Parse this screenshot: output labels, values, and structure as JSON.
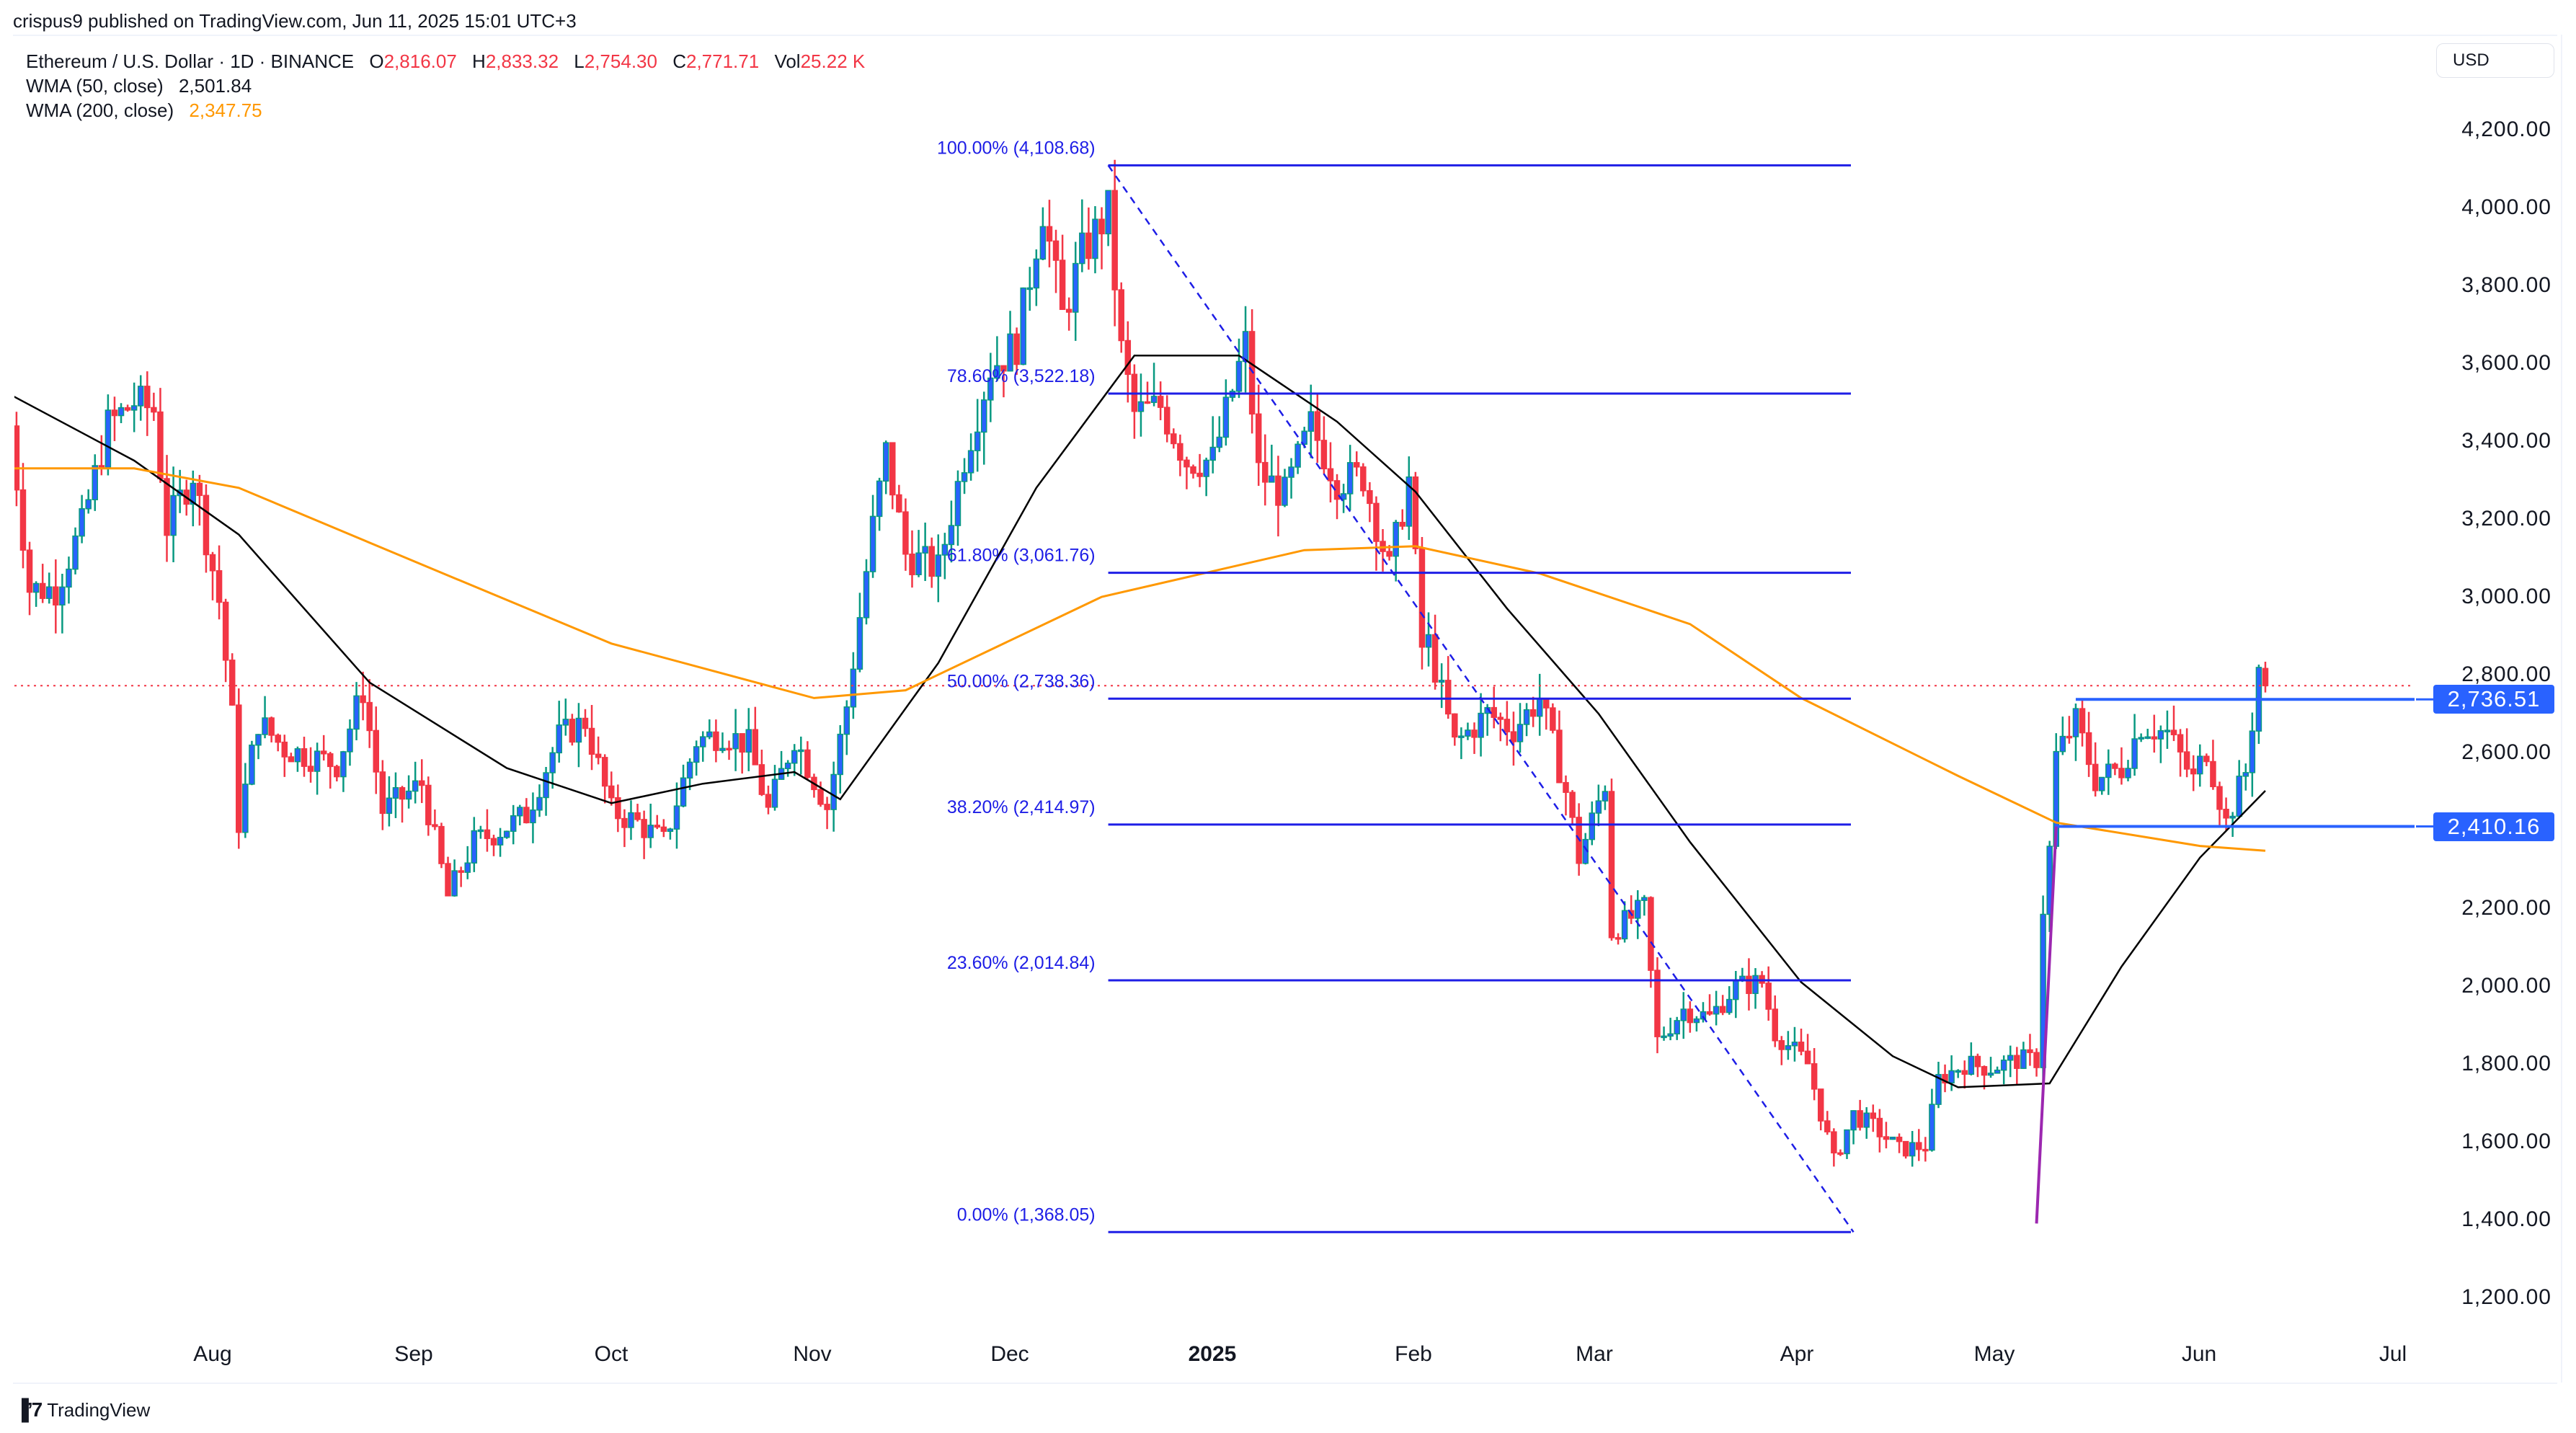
{
  "header": {
    "published": "crispus9 published on TradingView.com, Jun 11, 2025 15:01 UTC+3"
  },
  "legend": {
    "symbol": "Ethereum / U.S. Dollar · 1D · BINANCE",
    "open_label": "O",
    "open": "2,816.07",
    "high_label": "H",
    "high": "2,833.32",
    "low_label": "L",
    "low": "2,754.30",
    "close_label": "C",
    "close": "2,771.71",
    "vol_label": "Vol",
    "vol": "25.22 K",
    "wma50_label": "WMA (50, close)",
    "wma50_value": "2,501.84",
    "wma200_label": "WMA (200, close)",
    "wma200_value": "2,347.75"
  },
  "currency_button": "USD",
  "price_axis": {
    "ticks": [
      "4,200.00",
      "4,000.00",
      "3,800.00",
      "3,600.00",
      "3,400.00",
      "3,200.00",
      "3,000.00",
      "2,800.00",
      "2,600.00",
      "2,200.00",
      "2,000.00",
      "1,800.00",
      "1,600.00",
      "1,400.00",
      "1,200.00"
    ],
    "badges": [
      {
        "label": "2,736.51",
        "value": 2736.51
      },
      {
        "label": "2,410.16",
        "value": 2410.16
      }
    ]
  },
  "time_axis": {
    "labels": [
      "Aug",
      "Sep",
      "Oct",
      "Nov",
      "Dec",
      "2025",
      "Feb",
      "Mar",
      "Apr",
      "May",
      "Jun",
      "Jul"
    ]
  },
  "brand": {
    "name": "TradingView"
  },
  "colors": {
    "up_body": "#2962ff",
    "up_wick": "#089981",
    "down": "#f23645",
    "wma50": "#000000",
    "wma200": "#ff9800",
    "fib": "#1e1ee6",
    "hline": "#2962ff",
    "trend": "#9c27b0",
    "last_price": "#f23645"
  },
  "chart_data": {
    "type": "candlestick",
    "title": "Ethereum / U.S. Dollar · 1D · BINANCE",
    "xlabel": "",
    "ylabel": "USD",
    "ylim": [
      1150,
      4300
    ],
    "x_range": [
      "2024-07-01",
      "2025-07-15"
    ],
    "last_candle": {
      "date": "2025-06-11",
      "open": 2816.07,
      "high": 2833.32,
      "low": 2754.3,
      "close": 2771.71,
      "volume": "25.22K"
    },
    "close_anchors": [
      [
        "2024-07-01",
        3440
      ],
      [
        "2024-07-04",
        3020
      ],
      [
        "2024-07-08",
        3020
      ],
      [
        "2024-07-12",
        3180
      ],
      [
        "2024-07-16",
        3440
      ],
      [
        "2024-07-20",
        3500
      ],
      [
        "2024-07-23",
        3480
      ],
      [
        "2024-07-25",
        3180
      ],
      [
        "2024-07-29",
        3320
      ],
      [
        "2024-08-02",
        2990
      ],
      [
        "2024-08-04",
        2690
      ],
      [
        "2024-08-05",
        2420
      ],
      [
        "2024-08-08",
        2680
      ],
      [
        "2024-08-12",
        2610
      ],
      [
        "2024-08-16",
        2590
      ],
      [
        "2024-08-20",
        2570
      ],
      [
        "2024-08-24",
        2760
      ],
      [
        "2024-08-27",
        2450
      ],
      [
        "2024-09-02",
        2520
      ],
      [
        "2024-09-06",
        2230
      ],
      [
        "2024-09-10",
        2370
      ],
      [
        "2024-09-14",
        2400
      ],
      [
        "2024-09-18",
        2440
      ],
      [
        "2024-09-23",
        2640
      ],
      [
        "2024-09-27",
        2680
      ],
      [
        "2024-10-01",
        2450
      ],
      [
        "2024-10-05",
        2420
      ],
      [
        "2024-10-09",
        2370
      ],
      [
        "2024-10-14",
        2630
      ],
      [
        "2024-10-18",
        2650
      ],
      [
        "2024-10-22",
        2620
      ],
      [
        "2024-10-25",
        2450
      ],
      [
        "2024-10-29",
        2640
      ],
      [
        "2024-11-03",
        2460
      ],
      [
        "2024-11-06",
        2720
      ],
      [
        "2024-11-10",
        3180
      ],
      [
        "2024-11-12",
        3370
      ],
      [
        "2024-11-15",
        3110
      ],
      [
        "2024-11-20",
        3070
      ],
      [
        "2024-11-24",
        3360
      ],
      [
        "2024-11-28",
        3590
      ],
      [
        "2024-12-02",
        3650
      ],
      [
        "2024-12-06",
        4000
      ],
      [
        "2024-12-09",
        3720
      ],
      [
        "2024-12-12",
        3880
      ],
      [
        "2024-12-16",
        3990
      ],
      [
        "2024-12-18",
        3630
      ],
      [
        "2024-12-20",
        3470
      ],
      [
        "2024-12-24",
        3490
      ],
      [
        "2024-12-28",
        3350
      ],
      [
        "2025-01-01",
        3350
      ],
      [
        "2025-01-06",
        3650
      ],
      [
        "2025-01-08",
        3320
      ],
      [
        "2025-01-12",
        3260
      ],
      [
        "2025-01-16",
        3440
      ],
      [
        "2025-01-20",
        3300
      ],
      [
        "2025-01-24",
        3310
      ],
      [
        "2025-01-28",
        3070
      ],
      [
        "2025-01-31",
        3300
      ],
      [
        "2025-02-02",
        2870
      ],
      [
        "2025-02-03",
        2880
      ],
      [
        "2025-02-07",
        2620
      ],
      [
        "2025-02-12",
        2700
      ],
      [
        "2025-02-16",
        2660
      ],
      [
        "2025-02-20",
        2740
      ],
      [
        "2025-02-24",
        2500
      ],
      [
        "2025-02-26",
        2330
      ],
      [
        "2025-03-02",
        2520
      ],
      [
        "2025-03-03",
        2140
      ],
      [
        "2025-03-08",
        2200
      ],
      [
        "2025-03-10",
        1860
      ],
      [
        "2025-03-14",
        1940
      ],
      [
        "2025-03-18",
        1920
      ],
      [
        "2025-03-22",
        2000
      ],
      [
        "2025-03-26",
        2010
      ],
      [
        "2025-03-28",
        1880
      ],
      [
        "2025-04-02",
        1800
      ],
      [
        "2025-04-06",
        1550
      ],
      [
        "2025-04-09",
        1670
      ],
      [
        "2025-04-12",
        1640
      ],
      [
        "2025-04-16",
        1580
      ],
      [
        "2025-04-20",
        1590
      ],
      [
        "2025-04-22",
        1760
      ],
      [
        "2025-04-26",
        1800
      ],
      [
        "2025-04-30",
        1790
      ],
      [
        "2025-05-04",
        1810
      ],
      [
        "2025-05-07",
        1810
      ],
      [
        "2025-05-08",
        2200
      ],
      [
        "2025-05-09",
        2350
      ],
      [
        "2025-05-10",
        2590
      ],
      [
        "2025-05-13",
        2680
      ],
      [
        "2025-05-16",
        2530
      ],
      [
        "2025-05-20",
        2560
      ],
      [
        "2025-05-23",
        2670
      ],
      [
        "2025-05-27",
        2650
      ],
      [
        "2025-05-31",
        2530
      ],
      [
        "2025-06-02",
        2610
      ],
      [
        "2025-06-05",
        2420
      ],
      [
        "2025-06-08",
        2550
      ],
      [
        "2025-06-09",
        2680
      ],
      [
        "2025-06-10",
        2820
      ],
      [
        "2025-06-11",
        2771.71
      ]
    ],
    "series": [
      {
        "name": "WMA (50, close)",
        "color": "#000000",
        "last": 2501.84,
        "points": [
          [
            "2024-07-01",
            3520
          ],
          [
            "2024-07-20",
            3350
          ],
          [
            "2024-08-05",
            3160
          ],
          [
            "2024-08-25",
            2780
          ],
          [
            "2024-09-15",
            2560
          ],
          [
            "2024-10-01",
            2470
          ],
          [
            "2024-10-15",
            2520
          ],
          [
            "2024-10-29",
            2550
          ],
          [
            "2024-11-05",
            2480
          ],
          [
            "2024-11-20",
            2830
          ],
          [
            "2024-12-05",
            3280
          ],
          [
            "2024-12-20",
            3620
          ],
          [
            "2025-01-05",
            3620
          ],
          [
            "2025-01-20",
            3450
          ],
          [
            "2025-02-01",
            3270
          ],
          [
            "2025-02-15",
            2970
          ],
          [
            "2025-03-01",
            2700
          ],
          [
            "2025-03-15",
            2370
          ],
          [
            "2025-04-01",
            2010
          ],
          [
            "2025-04-15",
            1820
          ],
          [
            "2025-04-25",
            1740
          ],
          [
            "2025-05-09",
            1750
          ],
          [
            "2025-05-20",
            2050
          ],
          [
            "2025-06-01",
            2330
          ],
          [
            "2025-06-11",
            2501.84
          ]
        ]
      },
      {
        "name": "WMA (200, close)",
        "color": "#ff9800",
        "last": 2347.75,
        "points": [
          [
            "2024-07-01",
            3330
          ],
          [
            "2024-07-20",
            3330
          ],
          [
            "2024-08-05",
            3280
          ],
          [
            "2024-09-01",
            3090
          ],
          [
            "2024-10-01",
            2880
          ],
          [
            "2024-11-01",
            2740
          ],
          [
            "2024-11-15",
            2760
          ],
          [
            "2024-12-15",
            3000
          ],
          [
            "2025-01-15",
            3120
          ],
          [
            "2025-02-01",
            3130
          ],
          [
            "2025-02-20",
            3060
          ],
          [
            "2025-03-15",
            2930
          ],
          [
            "2025-04-01",
            2740
          ],
          [
            "2025-04-25",
            2540
          ],
          [
            "2025-05-10",
            2420
          ],
          [
            "2025-06-01",
            2360
          ],
          [
            "2025-06-11",
            2347.75
          ]
        ]
      }
    ],
    "fibonacci": {
      "start": [
        "2024-12-16",
        4108.68
      ],
      "end": [
        "2025-04-09",
        1368.05
      ],
      "levels": [
        {
          "pct": "100.00%",
          "value": 4108.68,
          "label": "100.00% (4,108.68)"
        },
        {
          "pct": "78.60%",
          "value": 3522.18,
          "label": "78.60% (3,522.18)"
        },
        {
          "pct": "61.80%",
          "value": 3061.76,
          "label": "61.80% (3,061.76)"
        },
        {
          "pct": "50.00%",
          "value": 2738.36,
          "label": "50.00% (2,738.36)"
        },
        {
          "pct": "38.20%",
          "value": 2414.97,
          "label": "38.20% (2,414.97)"
        },
        {
          "pct": "23.60%",
          "value": 2014.84,
          "label": "23.60% (2,014.84)"
        },
        {
          "pct": "0.00%",
          "value": 1368.05,
          "label": "0.00% (1,368.05)"
        }
      ]
    },
    "horizontal_lines": [
      {
        "value": 2736.51,
        "from": "2025-05-13"
      },
      {
        "value": 2410.16,
        "from": "2025-05-10"
      }
    ],
    "trend_line": {
      "from": [
        "2025-05-07",
        1390
      ],
      "to": [
        "2025-05-10",
        2410
      ]
    },
    "last_price_line": 2771.71
  }
}
